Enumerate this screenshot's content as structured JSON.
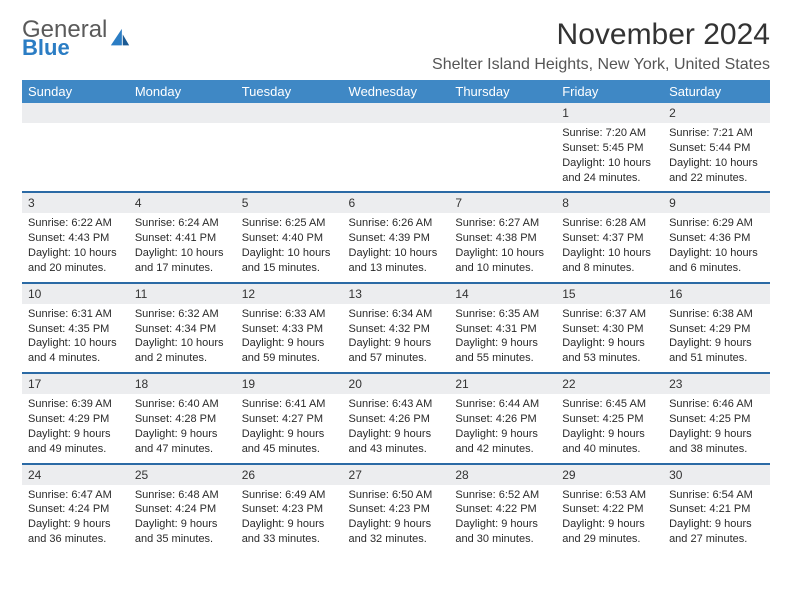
{
  "logo": {
    "word1": "General",
    "word2": "Blue"
  },
  "title": "November 2024",
  "location": "Shelter Island Heights, New York, United States",
  "colors": {
    "header_bg": "#3f88c5",
    "header_text": "#ffffff",
    "daynum_bg": "#ecedef",
    "week_sep": "#2b6aa5",
    "logo_blue": "#2b7dc4",
    "logo_gray": "#5a5a5a"
  },
  "day_labels": [
    "Sunday",
    "Monday",
    "Tuesday",
    "Wednesday",
    "Thursday",
    "Friday",
    "Saturday"
  ],
  "weeks": [
    [
      null,
      null,
      null,
      null,
      null,
      {
        "n": "1",
        "sr": "Sunrise: 7:20 AM",
        "ss": "Sunset: 5:45 PM",
        "dl": "Daylight: 10 hours and 24 minutes."
      },
      {
        "n": "2",
        "sr": "Sunrise: 7:21 AM",
        "ss": "Sunset: 5:44 PM",
        "dl": "Daylight: 10 hours and 22 minutes."
      }
    ],
    [
      {
        "n": "3",
        "sr": "Sunrise: 6:22 AM",
        "ss": "Sunset: 4:43 PM",
        "dl": "Daylight: 10 hours and 20 minutes."
      },
      {
        "n": "4",
        "sr": "Sunrise: 6:24 AM",
        "ss": "Sunset: 4:41 PM",
        "dl": "Daylight: 10 hours and 17 minutes."
      },
      {
        "n": "5",
        "sr": "Sunrise: 6:25 AM",
        "ss": "Sunset: 4:40 PM",
        "dl": "Daylight: 10 hours and 15 minutes."
      },
      {
        "n": "6",
        "sr": "Sunrise: 6:26 AM",
        "ss": "Sunset: 4:39 PM",
        "dl": "Daylight: 10 hours and 13 minutes."
      },
      {
        "n": "7",
        "sr": "Sunrise: 6:27 AM",
        "ss": "Sunset: 4:38 PM",
        "dl": "Daylight: 10 hours and 10 minutes."
      },
      {
        "n": "8",
        "sr": "Sunrise: 6:28 AM",
        "ss": "Sunset: 4:37 PM",
        "dl": "Daylight: 10 hours and 8 minutes."
      },
      {
        "n": "9",
        "sr": "Sunrise: 6:29 AM",
        "ss": "Sunset: 4:36 PM",
        "dl": "Daylight: 10 hours and 6 minutes."
      }
    ],
    [
      {
        "n": "10",
        "sr": "Sunrise: 6:31 AM",
        "ss": "Sunset: 4:35 PM",
        "dl": "Daylight: 10 hours and 4 minutes."
      },
      {
        "n": "11",
        "sr": "Sunrise: 6:32 AM",
        "ss": "Sunset: 4:34 PM",
        "dl": "Daylight: 10 hours and 2 minutes."
      },
      {
        "n": "12",
        "sr": "Sunrise: 6:33 AM",
        "ss": "Sunset: 4:33 PM",
        "dl": "Daylight: 9 hours and 59 minutes."
      },
      {
        "n": "13",
        "sr": "Sunrise: 6:34 AM",
        "ss": "Sunset: 4:32 PM",
        "dl": "Daylight: 9 hours and 57 minutes."
      },
      {
        "n": "14",
        "sr": "Sunrise: 6:35 AM",
        "ss": "Sunset: 4:31 PM",
        "dl": "Daylight: 9 hours and 55 minutes."
      },
      {
        "n": "15",
        "sr": "Sunrise: 6:37 AM",
        "ss": "Sunset: 4:30 PM",
        "dl": "Daylight: 9 hours and 53 minutes."
      },
      {
        "n": "16",
        "sr": "Sunrise: 6:38 AM",
        "ss": "Sunset: 4:29 PM",
        "dl": "Daylight: 9 hours and 51 minutes."
      }
    ],
    [
      {
        "n": "17",
        "sr": "Sunrise: 6:39 AM",
        "ss": "Sunset: 4:29 PM",
        "dl": "Daylight: 9 hours and 49 minutes."
      },
      {
        "n": "18",
        "sr": "Sunrise: 6:40 AM",
        "ss": "Sunset: 4:28 PM",
        "dl": "Daylight: 9 hours and 47 minutes."
      },
      {
        "n": "19",
        "sr": "Sunrise: 6:41 AM",
        "ss": "Sunset: 4:27 PM",
        "dl": "Daylight: 9 hours and 45 minutes."
      },
      {
        "n": "20",
        "sr": "Sunrise: 6:43 AM",
        "ss": "Sunset: 4:26 PM",
        "dl": "Daylight: 9 hours and 43 minutes."
      },
      {
        "n": "21",
        "sr": "Sunrise: 6:44 AM",
        "ss": "Sunset: 4:26 PM",
        "dl": "Daylight: 9 hours and 42 minutes."
      },
      {
        "n": "22",
        "sr": "Sunrise: 6:45 AM",
        "ss": "Sunset: 4:25 PM",
        "dl": "Daylight: 9 hours and 40 minutes."
      },
      {
        "n": "23",
        "sr": "Sunrise: 6:46 AM",
        "ss": "Sunset: 4:25 PM",
        "dl": "Daylight: 9 hours and 38 minutes."
      }
    ],
    [
      {
        "n": "24",
        "sr": "Sunrise: 6:47 AM",
        "ss": "Sunset: 4:24 PM",
        "dl": "Daylight: 9 hours and 36 minutes."
      },
      {
        "n": "25",
        "sr": "Sunrise: 6:48 AM",
        "ss": "Sunset: 4:24 PM",
        "dl": "Daylight: 9 hours and 35 minutes."
      },
      {
        "n": "26",
        "sr": "Sunrise: 6:49 AM",
        "ss": "Sunset: 4:23 PM",
        "dl": "Daylight: 9 hours and 33 minutes."
      },
      {
        "n": "27",
        "sr": "Sunrise: 6:50 AM",
        "ss": "Sunset: 4:23 PM",
        "dl": "Daylight: 9 hours and 32 minutes."
      },
      {
        "n": "28",
        "sr": "Sunrise: 6:52 AM",
        "ss": "Sunset: 4:22 PM",
        "dl": "Daylight: 9 hours and 30 minutes."
      },
      {
        "n": "29",
        "sr": "Sunrise: 6:53 AM",
        "ss": "Sunset: 4:22 PM",
        "dl": "Daylight: 9 hours and 29 minutes."
      },
      {
        "n": "30",
        "sr": "Sunrise: 6:54 AM",
        "ss": "Sunset: 4:21 PM",
        "dl": "Daylight: 9 hours and 27 minutes."
      }
    ]
  ]
}
